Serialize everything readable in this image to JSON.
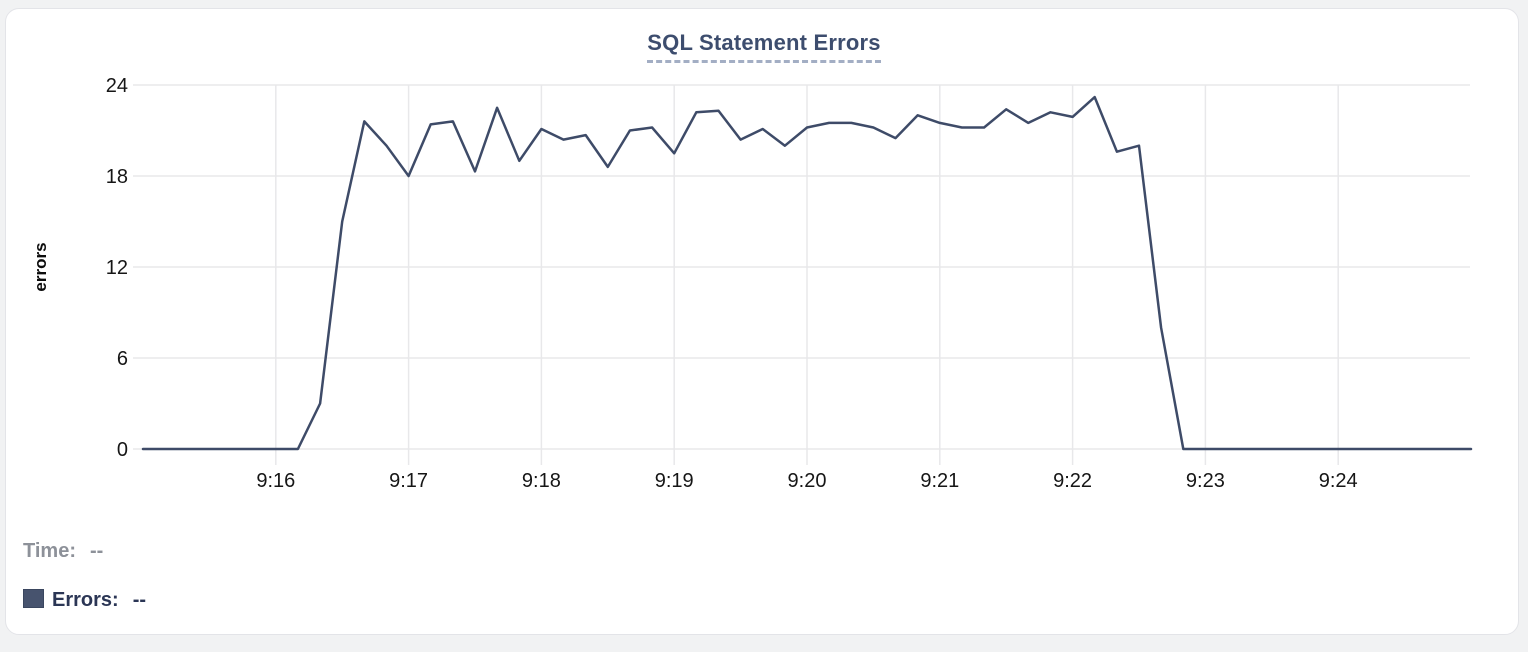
{
  "page": {
    "background_color": "#f1f2f3",
    "card_background": "#ffffff",
    "card_border_color": "#e3e4e8"
  },
  "chart": {
    "title": "SQL Statement Errors",
    "title_color": "#3d4d6e",
    "line_color": "#3e4b68",
    "grid_color": "#e8e8ea",
    "tick_text_color": "#161616"
  },
  "tooltip": {
    "time_label": "Time:",
    "time_value": "--",
    "errors_label": "Errors:",
    "errors_value": "--",
    "swatch_color": "#47536e"
  },
  "chart_data": {
    "type": "line",
    "title": "SQL Statement Errors",
    "xlabel": "",
    "ylabel": "errors",
    "ylim": [
      0,
      24
    ],
    "y_ticks": [
      0,
      6,
      12,
      18,
      24
    ],
    "x_ticks": [
      "9:16",
      "9:17",
      "9:18",
      "9:19",
      "9:20",
      "9:21",
      "9:22",
      "9:23",
      "9:24"
    ],
    "x_range": [
      "9:15:00",
      "9:25:00"
    ],
    "grid": true,
    "legend_position": "bottom-left",
    "series_name": "Errors",
    "x": [
      "9:15:00",
      "9:15:10",
      "9:15:20",
      "9:15:30",
      "9:15:40",
      "9:15:50",
      "9:16:00",
      "9:16:10",
      "9:16:20",
      "9:16:30",
      "9:16:40",
      "9:16:50",
      "9:17:00",
      "9:17:10",
      "9:17:20",
      "9:17:30",
      "9:17:40",
      "9:17:50",
      "9:18:00",
      "9:18:10",
      "9:18:20",
      "9:18:30",
      "9:18:40",
      "9:18:50",
      "9:19:00",
      "9:19:10",
      "9:19:20",
      "9:19:30",
      "9:19:40",
      "9:19:50",
      "9:20:00",
      "9:20:10",
      "9:20:20",
      "9:20:30",
      "9:20:40",
      "9:20:50",
      "9:21:00",
      "9:21:10",
      "9:21:20",
      "9:21:30",
      "9:21:40",
      "9:21:50",
      "9:22:00",
      "9:22:10",
      "9:22:20",
      "9:22:30",
      "9:22:40",
      "9:22:50",
      "9:23:00",
      "9:23:10",
      "9:23:20",
      "9:23:30",
      "9:23:40",
      "9:23:50",
      "9:24:00",
      "9:24:10",
      "9:24:20",
      "9:24:30",
      "9:24:40",
      "9:24:50",
      "9:25:00"
    ],
    "values": [
      0,
      0,
      0,
      0,
      0,
      0,
      0,
      0,
      3,
      15,
      21.6,
      20,
      18,
      21.4,
      21.6,
      18.3,
      22.5,
      19,
      21.1,
      20.4,
      20.7,
      18.6,
      21,
      21.2,
      19.5,
      22.2,
      22.3,
      20.4,
      21.1,
      20,
      21.2,
      21.5,
      21.5,
      21.2,
      20.5,
      22,
      21.5,
      21.2,
      21.2,
      22.4,
      21.5,
      22.2,
      21.9,
      23.2,
      19.6,
      20,
      8,
      0,
      0,
      0,
      0,
      0,
      0,
      0,
      0,
      0,
      0,
      0,
      0,
      0,
      0
    ]
  }
}
